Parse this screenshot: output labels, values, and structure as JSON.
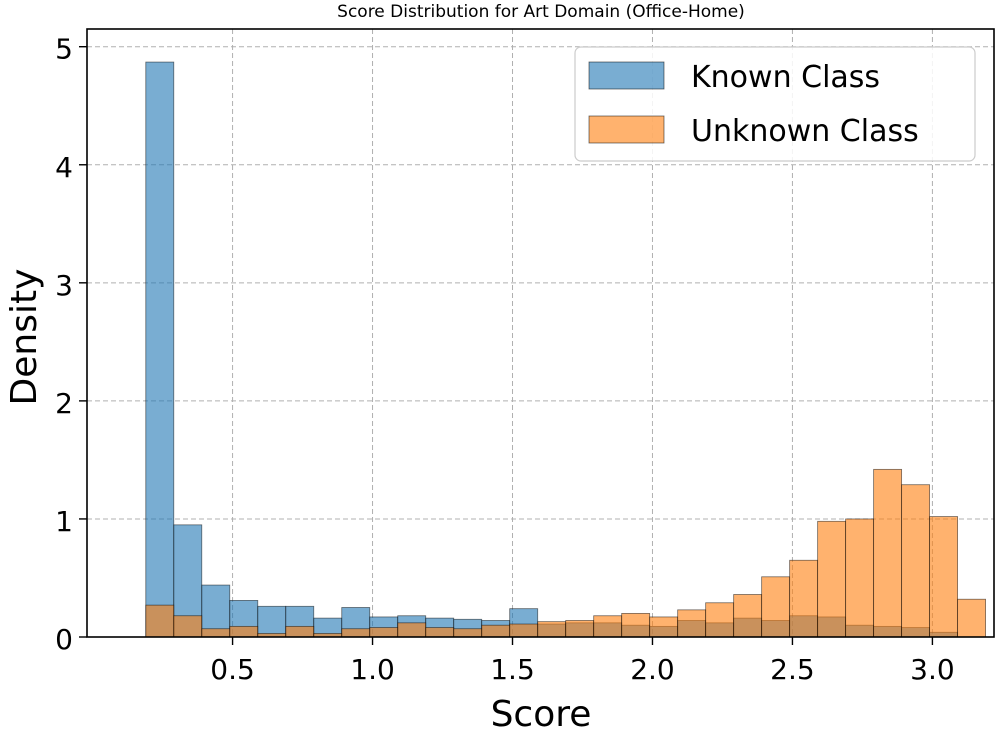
{
  "chart_data": {
    "type": "bar",
    "title": "Score Distribution for Art Domain (Office-Home)",
    "xlabel": "Score",
    "ylabel": "Density",
    "xlim": [
      -0.02,
      3.22
    ],
    "ylim": [
      0,
      5.15
    ],
    "xticks": [
      "0.5",
      "1.0",
      "1.5",
      "2.0",
      "2.5",
      "3.0"
    ],
    "xtick_values": [
      0.5,
      1.0,
      1.5,
      2.0,
      2.5,
      3.0
    ],
    "yticks": [
      "0",
      "1",
      "2",
      "3",
      "4",
      "5"
    ],
    "ytick_values": [
      0,
      1,
      2,
      3,
      4,
      5
    ],
    "grid": true,
    "legend_position": "top-right",
    "series": [
      {
        "name": "Known Class",
        "color": "#1f77b4",
        "bins": [
          [
            0.19,
            0.29
          ],
          [
            0.29,
            0.39
          ],
          [
            0.39,
            0.49
          ],
          [
            0.49,
            0.59
          ],
          [
            0.59,
            0.69
          ],
          [
            0.69,
            0.79
          ],
          [
            0.79,
            0.89
          ],
          [
            0.89,
            0.99
          ],
          [
            0.99,
            1.09
          ],
          [
            1.09,
            1.19
          ],
          [
            1.19,
            1.29
          ],
          [
            1.29,
            1.39
          ],
          [
            1.39,
            1.49
          ],
          [
            1.49,
            1.59
          ],
          [
            1.59,
            1.69
          ],
          [
            1.69,
            1.79
          ],
          [
            1.79,
            1.89
          ],
          [
            1.89,
            1.99
          ],
          [
            1.99,
            2.09
          ],
          [
            2.09,
            2.19
          ],
          [
            2.19,
            2.29
          ],
          [
            2.29,
            2.39
          ],
          [
            2.39,
            2.49
          ],
          [
            2.49,
            2.59
          ],
          [
            2.59,
            2.69
          ],
          [
            2.69,
            2.79
          ],
          [
            2.79,
            2.89
          ],
          [
            2.89,
            2.99
          ],
          [
            2.99,
            3.09
          ]
        ],
        "values": [
          4.87,
          0.95,
          0.44,
          0.31,
          0.26,
          0.26,
          0.16,
          0.25,
          0.17,
          0.18,
          0.16,
          0.15,
          0.14,
          0.24,
          0.11,
          0.12,
          0.12,
          0.1,
          0.09,
          0.14,
          0.12,
          0.16,
          0.14,
          0.18,
          0.17,
          0.1,
          0.09,
          0.08,
          0.04
        ]
      },
      {
        "name": "Unknown Class",
        "color": "#ff7f0e",
        "bins": [
          [
            0.19,
            0.29
          ],
          [
            0.29,
            0.39
          ],
          [
            0.39,
            0.49
          ],
          [
            0.49,
            0.59
          ],
          [
            0.59,
            0.69
          ],
          [
            0.69,
            0.79
          ],
          [
            0.79,
            0.89
          ],
          [
            0.89,
            0.99
          ],
          [
            0.99,
            1.09
          ],
          [
            1.09,
            1.19
          ],
          [
            1.19,
            1.29
          ],
          [
            1.29,
            1.39
          ],
          [
            1.39,
            1.49
          ],
          [
            1.49,
            1.59
          ],
          [
            1.59,
            1.69
          ],
          [
            1.69,
            1.79
          ],
          [
            1.79,
            1.89
          ],
          [
            1.89,
            1.99
          ],
          [
            1.99,
            2.09
          ],
          [
            2.09,
            2.19
          ],
          [
            2.19,
            2.29
          ],
          [
            2.29,
            2.39
          ],
          [
            2.39,
            2.49
          ],
          [
            2.49,
            2.59
          ],
          [
            2.59,
            2.69
          ],
          [
            2.69,
            2.79
          ],
          [
            2.79,
            2.89
          ],
          [
            2.89,
            2.99
          ],
          [
            2.99,
            3.09
          ],
          [
            3.09,
            3.19
          ]
        ],
        "values": [
          0.27,
          0.18,
          0.07,
          0.09,
          0.03,
          0.09,
          0.03,
          0.07,
          0.08,
          0.12,
          0.08,
          0.07,
          0.1,
          0.11,
          0.13,
          0.14,
          0.18,
          0.2,
          0.17,
          0.23,
          0.29,
          0.36,
          0.51,
          0.65,
          0.98,
          1.0,
          1.42,
          1.29,
          1.02,
          0.32
        ]
      }
    ]
  }
}
